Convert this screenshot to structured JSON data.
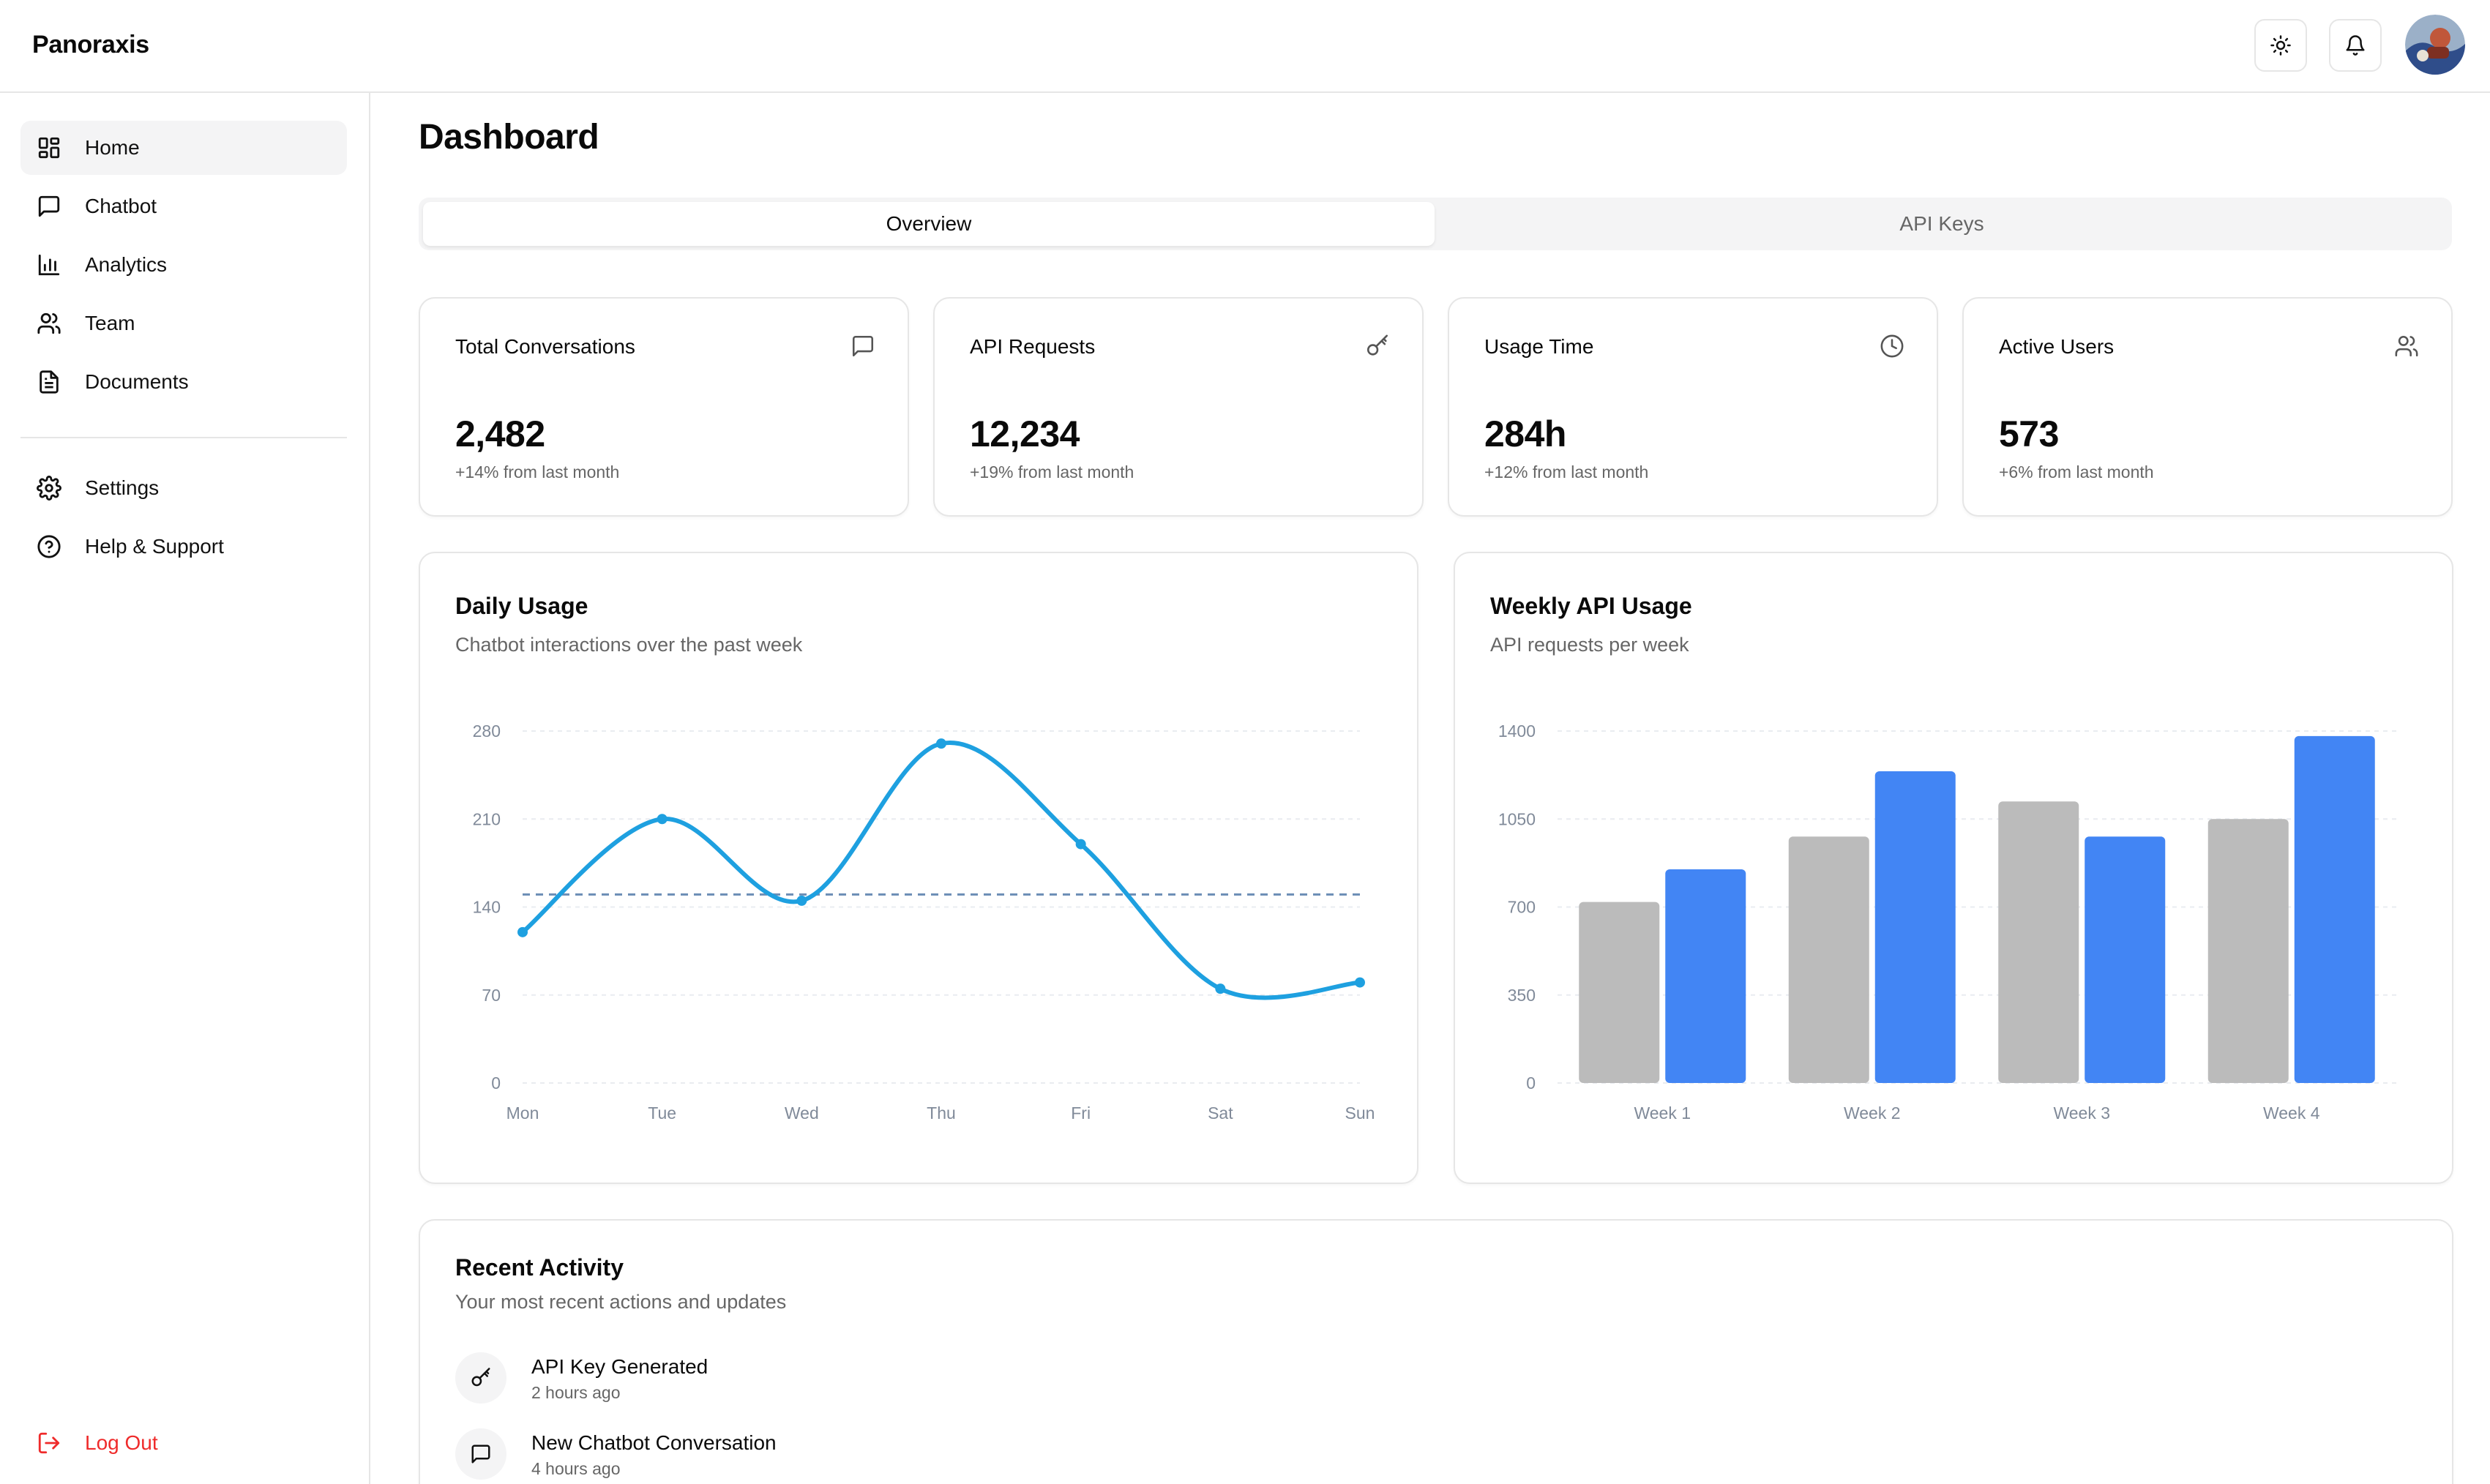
{
  "header": {
    "brand": "Panoraxis"
  },
  "sidebar": {
    "items": [
      {
        "label": "Home",
        "icon": "grid-icon"
      },
      {
        "label": "Chatbot",
        "icon": "message-square-icon"
      },
      {
        "label": "Analytics",
        "icon": "bar-chart-icon"
      },
      {
        "label": "Team",
        "icon": "users-icon"
      },
      {
        "label": "Documents",
        "icon": "file-text-icon"
      }
    ],
    "secondary": [
      {
        "label": "Settings",
        "icon": "gear-icon"
      },
      {
        "label": "Help & Support",
        "icon": "help-circle-icon"
      }
    ],
    "logout": "Log Out"
  },
  "page": {
    "title": "Dashboard",
    "tabs": [
      "Overview",
      "API Keys"
    ]
  },
  "stats": [
    {
      "title": "Total Conversations",
      "value": "2,482",
      "sub": "+14% from last month",
      "icon": "message-square-icon"
    },
    {
      "title": "API Requests",
      "value": "12,234",
      "sub": "+19% from last month",
      "icon": "key-icon"
    },
    {
      "title": "Usage Time",
      "value": "284h",
      "sub": "+12% from last month",
      "icon": "clock-icon"
    },
    {
      "title": "Active Users",
      "value": "573",
      "sub": "+6% from last month",
      "icon": "users-icon"
    }
  ],
  "chart_data": [
    {
      "type": "line",
      "title": "Daily Usage",
      "subtitle": "Chatbot interactions over the past week",
      "categories": [
        "Mon",
        "Tue",
        "Wed",
        "Thu",
        "Fri",
        "Sat",
        "Sun"
      ],
      "series": [
        {
          "values": [
            120,
            210,
            145,
            270,
            190,
            75,
            80
          ]
        }
      ],
      "reference_line": 150,
      "ylim": [
        0,
        280
      ],
      "yticks": [
        "0",
        "70",
        "140",
        "210",
        "280"
      ],
      "color": "#1ea0e0",
      "grid": true
    },
    {
      "type": "bar",
      "title": "Weekly API Usage",
      "subtitle": "API requests per week",
      "categories": [
        "Week 1",
        "Week 2",
        "Week 3",
        "Week 4"
      ],
      "series": [
        {
          "values": [
            720,
            980,
            1120,
            1050
          ],
          "color": "#bbbbbb"
        },
        {
          "values": [
            850,
            1240,
            980,
            1380
          ],
          "color": "#4285f4"
        }
      ],
      "ylim": [
        0,
        1400
      ],
      "yticks": [
        "0",
        "350",
        "700",
        "1050",
        "1400"
      ],
      "grid": true
    }
  ],
  "activity": {
    "title": "Recent Activity",
    "subtitle": "Your most recent actions and updates",
    "items": [
      {
        "name": "API Key Generated",
        "time": "2 hours ago",
        "icon": "key-icon"
      },
      {
        "name": "New Chatbot Conversation",
        "time": "4 hours ago",
        "icon": "message-square-icon"
      }
    ]
  }
}
